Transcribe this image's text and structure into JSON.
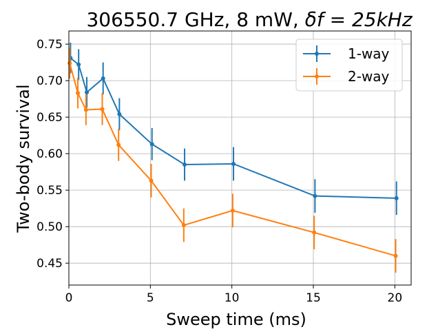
{
  "chart_data": {
    "type": "line",
    "title": "306550.7 GHz, 8 mW, ",
    "title_math": "δf = 25kHz",
    "xlabel": "Sweep time (ms)",
    "ylabel": "Two-body survival",
    "xlim": [
      0,
      21
    ],
    "ylim": [
      0.42,
      0.768
    ],
    "xticks": [
      0,
      5,
      10,
      15,
      20
    ],
    "yticks": [
      0.45,
      0.5,
      0.55,
      0.6,
      0.65,
      0.7,
      0.75
    ],
    "xtick_labels": [
      "0",
      "5",
      "10",
      "15",
      "20"
    ],
    "ytick_labels": [
      "0.45",
      "0.50",
      "0.55",
      "0.60",
      "0.65",
      "0.70",
      "0.75"
    ],
    "grid": true,
    "legend_position": "top-right",
    "series": [
      {
        "name": "1-way",
        "color": "#1f77b4",
        "x": [
          0.1,
          0.6,
          1.1,
          2.1,
          3.1,
          5.1,
          7.1,
          10.1,
          15.1,
          20.1
        ],
        "y": [
          0.731,
          0.722,
          0.684,
          0.703,
          0.654,
          0.613,
          0.585,
          0.586,
          0.542,
          0.539
        ],
        "err": [
          0.021,
          0.021,
          0.021,
          0.022,
          0.022,
          0.022,
          0.022,
          0.023,
          0.023,
          0.023
        ]
      },
      {
        "name": "2-way",
        "color": "#ff7f0e",
        "x": [
          0.05,
          0.55,
          1.05,
          2.05,
          3.05,
          5.05,
          7.05,
          10.05,
          15.05,
          20.05
        ],
        "y": [
          0.724,
          0.683,
          0.66,
          0.661,
          0.612,
          0.563,
          0.502,
          0.522,
          0.492,
          0.46
        ],
        "err": [
          0.021,
          0.021,
          0.021,
          0.022,
          0.022,
          0.023,
          0.023,
          0.023,
          0.023,
          0.023
        ]
      }
    ]
  }
}
